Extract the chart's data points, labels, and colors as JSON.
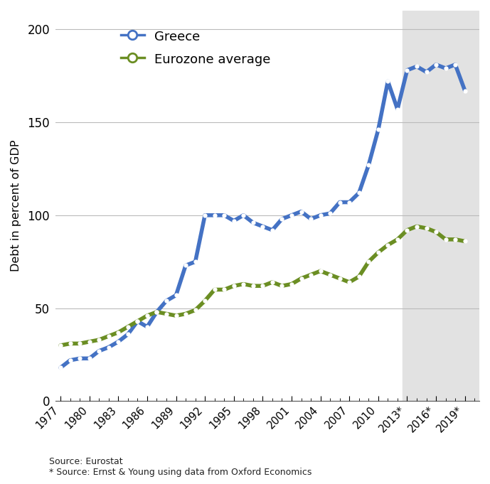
{
  "greece_years": [
    1977,
    1978,
    1979,
    1980,
    1981,
    1982,
    1983,
    1984,
    1985,
    1986,
    1987,
    1988,
    1989,
    1990,
    1991,
    1992,
    1993,
    1994,
    1995,
    1996,
    1997,
    1998,
    1999,
    2000,
    2001,
    2002,
    2003,
    2004,
    2005,
    2006,
    2007,
    2008,
    2009,
    2010,
    2011,
    2012,
    2013,
    2014,
    2015,
    2016,
    2017,
    2018,
    2019
  ],
  "greece_values": [
    18,
    22,
    23,
    23,
    27,
    29,
    32,
    36,
    43,
    40,
    48,
    54,
    57,
    73,
    75,
    100,
    100,
    100,
    97,
    100,
    96,
    94,
    92,
    98,
    100,
    102,
    98,
    100,
    101,
    107,
    107,
    112,
    127,
    146,
    172,
    157,
    178,
    180,
    177,
    181,
    179,
    181,
    167
  ],
  "eurozone_years": [
    1977,
    1978,
    1979,
    1980,
    1981,
    1982,
    1983,
    1984,
    1985,
    1986,
    1987,
    1988,
    1989,
    1990,
    1991,
    1992,
    1993,
    1994,
    1995,
    1996,
    1997,
    1998,
    1999,
    2000,
    2001,
    2002,
    2003,
    2004,
    2005,
    2006,
    2007,
    2008,
    2009,
    2010,
    2011,
    2012,
    2013,
    2014,
    2015,
    2016,
    2017,
    2018,
    2019
  ],
  "eurozone_values": [
    30,
    31,
    31,
    32,
    33,
    35,
    37,
    40,
    43,
    46,
    48,
    47,
    46,
    47,
    49,
    54,
    60,
    60,
    62,
    63,
    62,
    62,
    64,
    62,
    63,
    66,
    68,
    70,
    68,
    66,
    64,
    67,
    75,
    80,
    84,
    87,
    92,
    94,
    93,
    91,
    87,
    87,
    86
  ],
  "greece_color": "#4472C4",
  "eurozone_color": "#6B8E23",
  "shade_start": 2012.5,
  "shade_end": 2020.5,
  "ylabel": "Debt in percent of GDP",
  "yticks": [
    0,
    50,
    100,
    150,
    200
  ],
  "xtick_labels": [
    "1977",
    "1980",
    "1983",
    "1986",
    "1989",
    "1992",
    "1995",
    "1998",
    "2001",
    "2004",
    "2007",
    "2010",
    "2013*",
    "2016*",
    "2019*"
  ],
  "xtick_positions": [
    1977,
    1980,
    1983,
    1986,
    1989,
    1992,
    1995,
    1998,
    2001,
    2004,
    2007,
    2010,
    2013,
    2016,
    2019
  ],
  "source_text": "Source: Eurostat\n* Source: Ernst & Young using data from Oxford Economics",
  "background_color": "#ffffff",
  "shade_color": "#e2e2e2",
  "xlim_left": 1976.5,
  "xlim_right": 2020.5,
  "ylim_top": 210,
  "line_width": 4.0,
  "dot_size": 4.5,
  "legend_greece": "Greece",
  "legend_eurozone": "Eurozone average"
}
